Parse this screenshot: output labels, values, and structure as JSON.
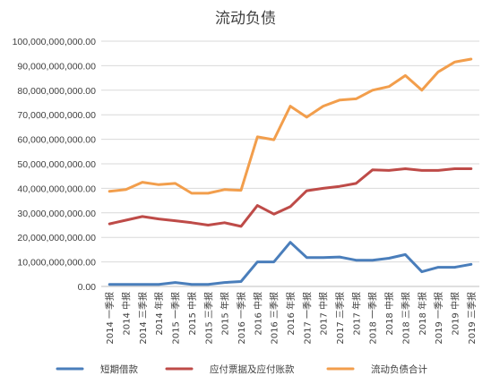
{
  "chart_data": {
    "type": "line",
    "title": "流动负债",
    "categories": [
      "2014 一季报",
      "2014 中报",
      "2014 三季报",
      "2014 年报",
      "2015 一季报",
      "2015 中报",
      "2015 三季报",
      "2015 年报",
      "2016 一季报",
      "2016 中报",
      "2016 三季报",
      "2016 年报",
      "2017 一季报",
      "2017 中报",
      "2017 三季报",
      "2017 年报",
      "2018 一季报",
      "2018 中报",
      "2018 三季报",
      "2018 年报",
      "2019 一季报",
      "2019 中报",
      "2019 三季报"
    ],
    "ylim": [
      0,
      100000000000
    ],
    "yticks": [
      0,
      10000000000,
      20000000000,
      30000000000,
      40000000000,
      50000000000,
      60000000000,
      70000000000,
      80000000000,
      90000000000,
      100000000000
    ],
    "ytick_labels": [
      "0.00",
      "10,000,000,000.00",
      "20,000,000,000.00",
      "30,000,000,000.00",
      "40,000,000,000.00",
      "50,000,000,000.00",
      "60,000,000,000.00",
      "70,000,000,000.00",
      "80,000,000,000.00",
      "90,000,000,000.00",
      "100,000,000,000.00"
    ],
    "grid": true,
    "legend_position": "bottom",
    "series": [
      {
        "name": "短期借款",
        "color": "#4a7ebb",
        "values": [
          800000000,
          800000000,
          800000000,
          800000000,
          1600000000,
          800000000,
          800000000,
          1600000000,
          2000000000,
          10000000000,
          10000000000,
          18000000000,
          11800000000,
          11800000000,
          12000000000,
          10700000000,
          10700000000,
          11500000000,
          13000000000,
          6000000000,
          7800000000,
          7800000000,
          9000000000
        ]
      },
      {
        "name": "应付票据及应付账款",
        "color": "#be4b48",
        "values": [
          25500000000,
          27000000000,
          28500000000,
          27500000000,
          26800000000,
          26000000000,
          25000000000,
          26000000000,
          24500000000,
          33000000000,
          29500000000,
          32500000000,
          39000000000,
          40000000000,
          40800000000,
          42000000000,
          47500000000,
          47300000000,
          48000000000,
          47300000000,
          47300000000,
          48000000000,
          48000000000
        ]
      },
      {
        "name": "流动负债合计",
        "color": "#f29e4c",
        "values": [
          38800000000,
          39500000000,
          42500000000,
          41500000000,
          42000000000,
          38000000000,
          38000000000,
          39500000000,
          39200000000,
          61000000000,
          59800000000,
          73500000000,
          69000000000,
          73500000000,
          76000000000,
          76500000000,
          80000000000,
          81500000000,
          86000000000,
          80000000000,
          87500000000,
          91500000000,
          92700000000
        ]
      }
    ]
  }
}
